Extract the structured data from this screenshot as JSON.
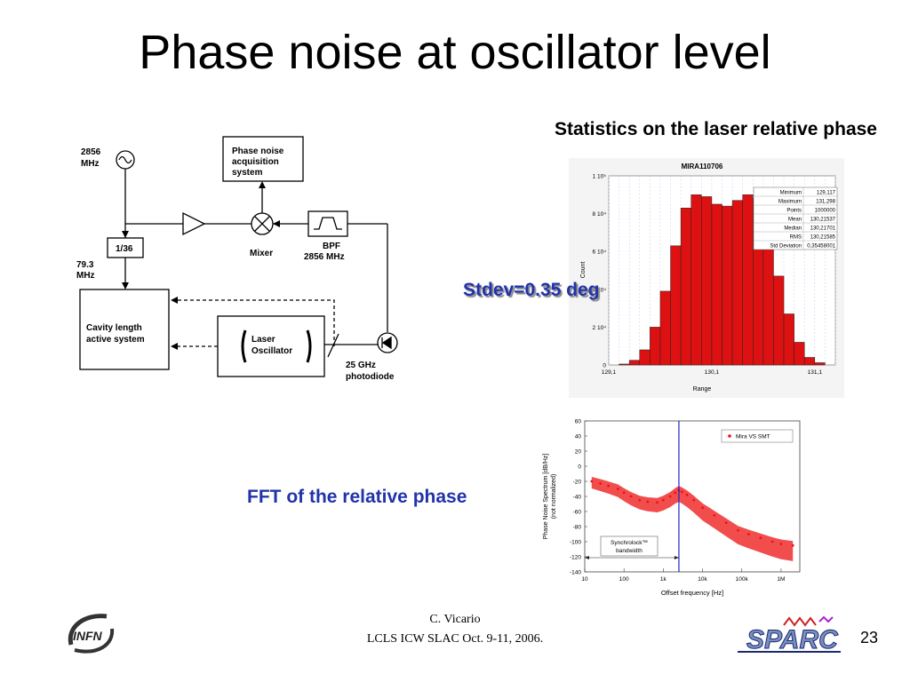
{
  "slide": {
    "title": "Phase noise at oscillator level",
    "stats_heading": "Statistics on the laser relative phase",
    "stdev_label": "Stdev=0.35 deg",
    "fft_label": "FFT of the relative phase",
    "footer_author": "C. Vicario",
    "footer_event": "LCLS ICW SLAC Oct. 9-11, 2006.",
    "page_number": "23"
  },
  "logos": {
    "left": "INFN",
    "right": "SPARC"
  },
  "diagram": {
    "source_freq": "2856\nMHz",
    "divider": "1/36",
    "divided_freq": "79.3\nMHz",
    "acq_box": "Phase noise acquisition system",
    "mixer": "Mixer",
    "bpf": "BPF",
    "bpf_freq": "2856 MHz",
    "cavity": "Cavity length active system",
    "laser": "Laser Oscillator",
    "photodiode": "25 GHz photodiode"
  },
  "chart_data": [
    {
      "type": "bar",
      "title": "MIRA110706",
      "xlabel": "Range",
      "ylabel": "Count",
      "x_ticks": [
        "129,1",
        "130,1",
        "131,1"
      ],
      "y_ticks": [
        "0",
        "2 10⁴",
        "4 10⁴",
        "6 10⁴",
        "8 10⁴",
        "1 10⁵"
      ],
      "xlim": [
        129.1,
        131.3
      ],
      "ylim": [
        0,
        100000
      ],
      "bin_width": 0.1,
      "bin_starts": [
        129.2,
        129.3,
        129.4,
        129.5,
        129.6,
        129.7,
        129.8,
        129.9,
        130.0,
        130.1,
        130.2,
        130.3,
        130.4,
        130.5,
        130.6,
        130.7,
        130.8,
        130.9,
        131.0,
        131.1
      ],
      "values": [
        500,
        2500,
        8000,
        20000,
        39000,
        63000,
        83000,
        90000,
        89000,
        85000,
        84000,
        87000,
        90000,
        88000,
        71000,
        47000,
        27000,
        12000,
        4000,
        1200
      ],
      "stats_table": [
        [
          "Minimum",
          "129,117"
        ],
        [
          "Maximum",
          "131,298"
        ],
        [
          "Points",
          "1000000"
        ],
        [
          "Mean",
          "130,21537"
        ],
        [
          "Median",
          "130,21701"
        ],
        [
          "RMS",
          "130,21585"
        ],
        [
          "Std Deviation",
          "0,35458001"
        ]
      ],
      "bar_color": "#dd1111"
    },
    {
      "type": "scatter",
      "xlabel": "Offset frequency [Hz]",
      "ylabel": "Phase Noise Spectrum [dB/Hz]\n(not normalized)",
      "x_scale": "log",
      "xlim": [
        10,
        3000000
      ],
      "ylim": [
        -140,
        60
      ],
      "x_ticks": [
        "10",
        "100",
        "1k",
        "10k",
        "100k",
        "1M"
      ],
      "y_ticks": [
        "60",
        "40",
        "20",
        "0",
        "-20",
        "-40",
        "-60",
        "-80",
        "-100",
        "-120",
        "-140"
      ],
      "series": [
        {
          "name": "Mira VS SMT",
          "color": "#ee1111",
          "x": [
            15,
            25,
            40,
            70,
            100,
            150,
            250,
            400,
            700,
            1000,
            1500,
            2000,
            2500,
            3000,
            4000,
            6000,
            10000,
            20000,
            40000,
            80000,
            150000,
            300000,
            600000,
            1000000,
            2000000
          ],
          "y": [
            -20,
            -23,
            -26,
            -30,
            -35,
            -40,
            -45,
            -47,
            -48,
            -45,
            -40,
            -35,
            -32,
            -34,
            -38,
            -45,
            -55,
            -65,
            -75,
            -85,
            -90,
            -95,
            -100,
            -103,
            -105
          ]
        }
      ],
      "annotation": "Synchrolock™\nbandwidth",
      "vline_x": 2500,
      "legend": "top-right"
    }
  ]
}
